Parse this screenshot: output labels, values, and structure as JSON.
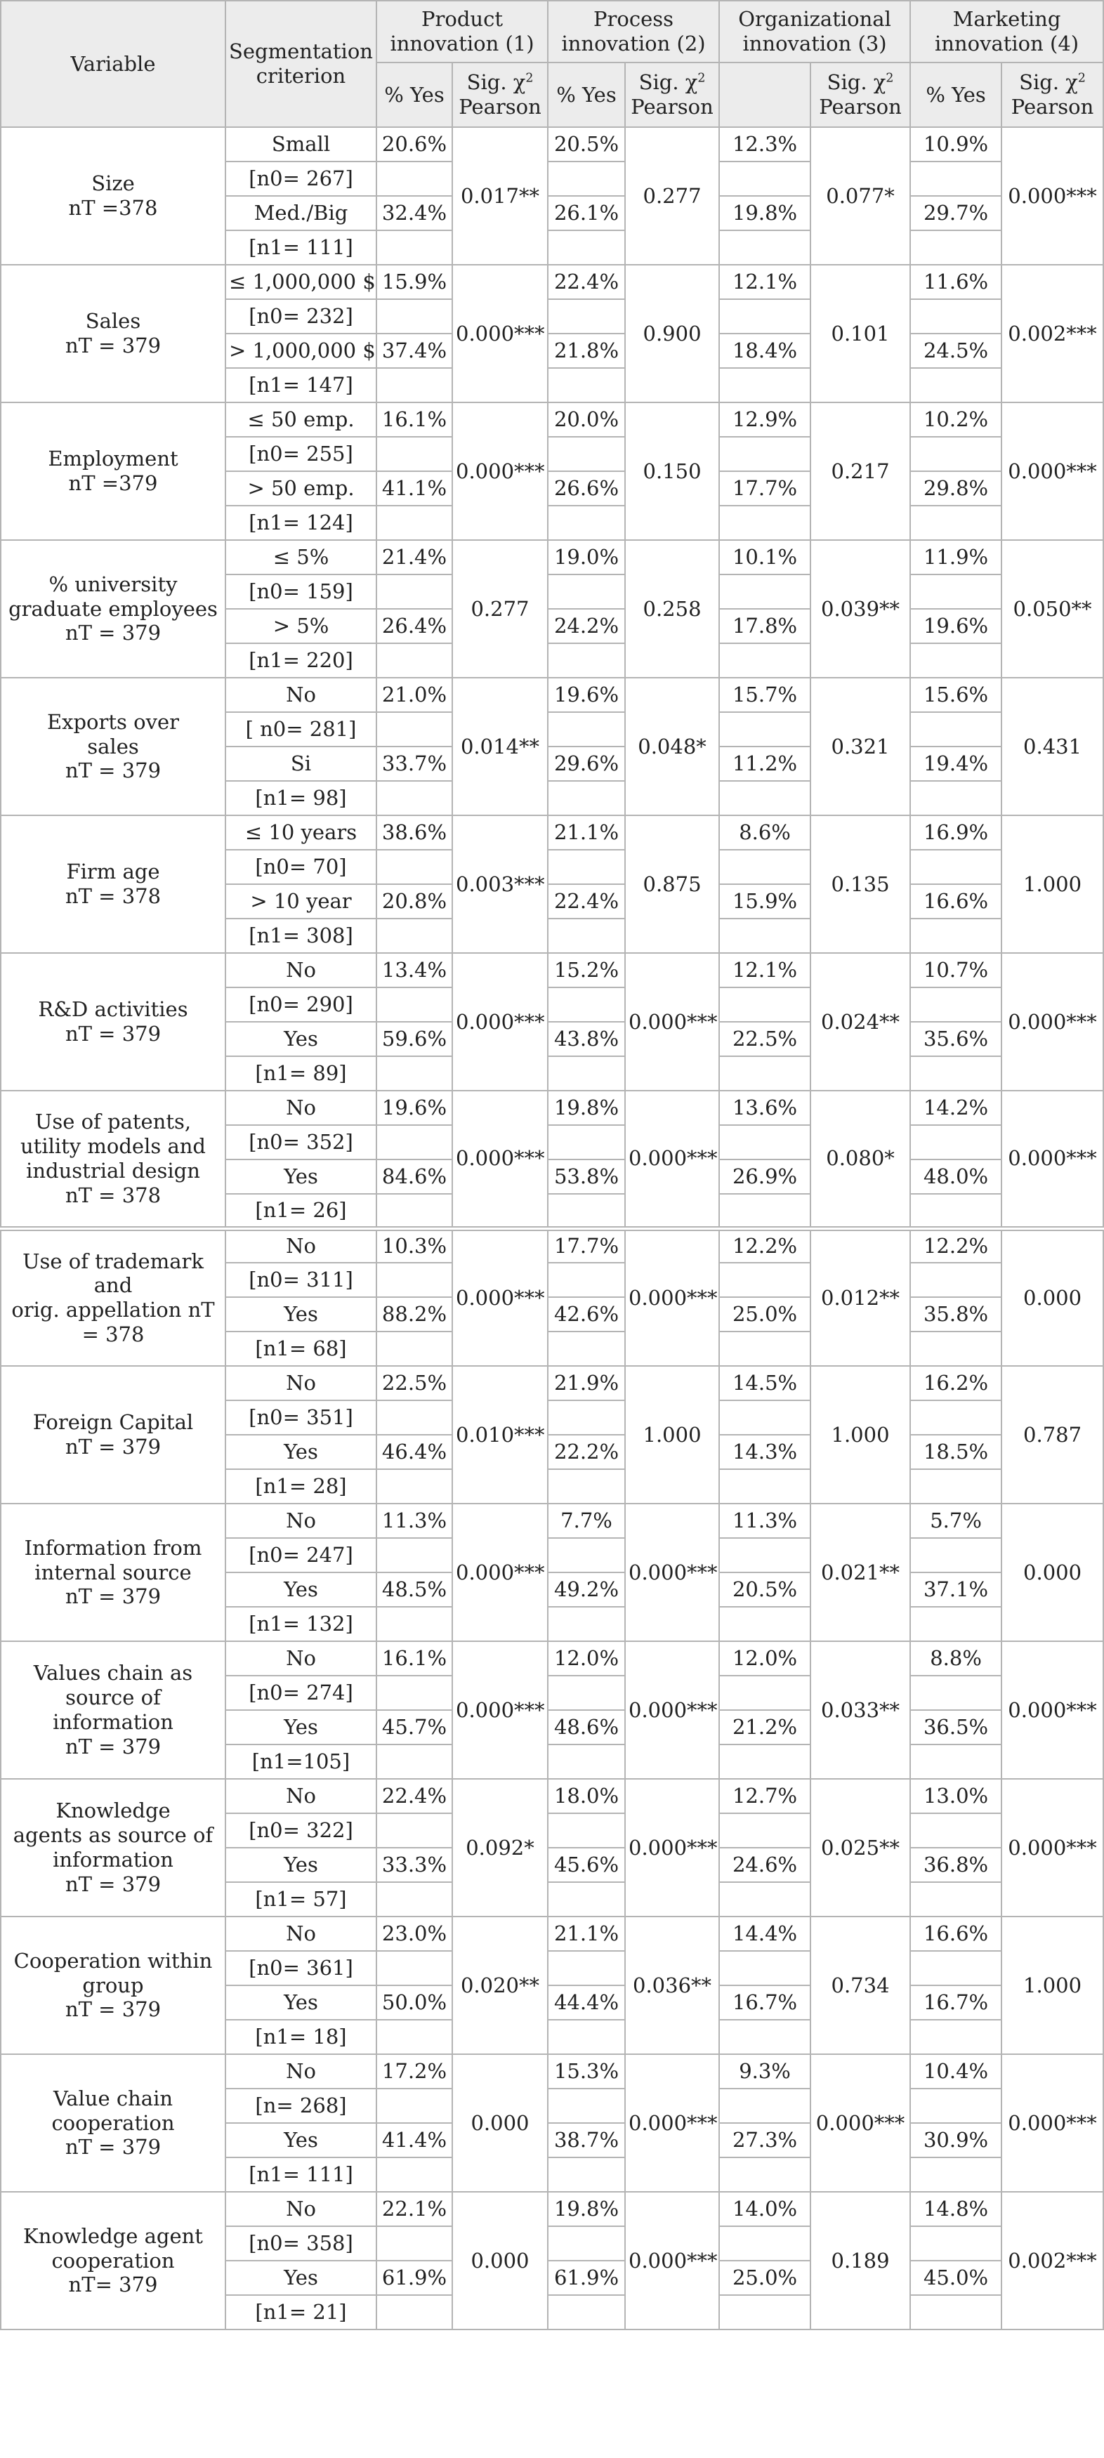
{
  "header": {
    "variable": "Variable",
    "criterion": "Segmentation criterion",
    "groups": [
      "Product innovation (1)",
      "Process innovation (2)",
      "Organizational innovation (3)",
      "Marketing innovation (4)"
    ],
    "pct_yes": "% Yes",
    "sig_label": "Sig. χ",
    "sig_sup": "2",
    "pearson": "Pearson"
  },
  "rows": [
    {
      "var": [
        "Size",
        "nT =378"
      ],
      "c0": "Small",
      "n0": "[n0= 267]",
      "c1": "Med./Big",
      "n1": "[n1= 111]",
      "p0": [
        "20.6%",
        "20.5%",
        "12.3%",
        "10.9%"
      ],
      "p1": [
        "32.4%",
        "26.1%",
        "19.8%",
        "29.7%"
      ],
      "sig": [
        "0.017**",
        "0.277",
        "0.077*",
        "0.000***"
      ]
    },
    {
      "var": [
        "Sales",
        "nT = 379"
      ],
      "c0": "≤ 1,000,000 $",
      "n0": "[n0= 232]",
      "c1": "> 1,000,000 $",
      "n1": "[n1= 147]",
      "p0": [
        "15.9%",
        "22.4%",
        "12.1%",
        "11.6%"
      ],
      "p1": [
        "37.4%",
        "21.8%",
        "18.4%",
        "24.5%"
      ],
      "sig": [
        "0.000***",
        "0.900",
        "0.101",
        "0.002***"
      ]
    },
    {
      "var": [
        "Employment",
        "nT =379"
      ],
      "c0": "≤ 50 emp.",
      "n0": "[n0= 255]",
      "c1": "> 50 emp.",
      "n1": "[n1= 124]",
      "p0": [
        "16.1%",
        "20.0%",
        "12.9%",
        "10.2%"
      ],
      "p1": [
        "41.1%",
        "26.6%",
        "17.7%",
        "29.8%"
      ],
      "sig": [
        "0.000***",
        "0.150",
        "0.217",
        "0.000***"
      ]
    },
    {
      "var": [
        "% university",
        "graduate employees",
        "nT = 379"
      ],
      "c0": "≤ 5%",
      "n0": "[n0= 159]",
      "c1": "> 5%",
      "n1": "[n1= 220]",
      "p0": [
        "21.4%",
        "19.0%",
        "10.1%",
        "11.9%"
      ],
      "p1": [
        "26.4%",
        "24.2%",
        "17.8%",
        "19.6%"
      ],
      "sig": [
        "0.277",
        "0.258",
        "0.039**",
        "0.050**"
      ]
    },
    {
      "var": [
        "Exports over",
        "sales",
        "nT = 379"
      ],
      "c0": "No",
      "n0": "[ n0= 281]",
      "c1": "Si",
      "n1": "[n1= 98]",
      "p0": [
        "21.0%",
        "19.6%",
        "15.7%",
        "15.6%"
      ],
      "p1": [
        "33.7%",
        "29.6%",
        "11.2%",
        "19.4%"
      ],
      "sig": [
        "0.014**",
        "0.048*",
        "0.321",
        "0.431"
      ]
    },
    {
      "var": [
        "Firm age",
        "nT = 378"
      ],
      "c0": "≤ 10 years",
      "n0": "[n0= 70]",
      "c1": "> 10 year",
      "n1": "[n1= 308]",
      "p0": [
        "38.6%",
        "21.1%",
        "8.6%",
        "16.9%"
      ],
      "p1": [
        "20.8%",
        "22.4%",
        "15.9%",
        "16.6%"
      ],
      "sig": [
        "0.003***",
        "0.875",
        "0.135",
        "1.000"
      ]
    },
    {
      "var": [
        "R&D activities",
        "nT = 379"
      ],
      "c0": "No",
      "n0": "[n0= 290]",
      "c1": "Yes",
      "n1": "[n1= 89]",
      "p0": [
        "13.4%",
        "15.2%",
        "12.1%",
        "10.7%"
      ],
      "p1": [
        "59.6%",
        "43.8%",
        "22.5%",
        "35.6%"
      ],
      "sig": [
        "0.000***",
        "0.000***",
        "0.024**",
        "0.000***"
      ]
    },
    {
      "var": [
        "Use of patents,",
        "utility models and",
        "industrial design",
        "nT = 378"
      ],
      "c0": "No",
      "n0": "[n0= 352]",
      "c1": "Yes",
      "n1": "[n1= 26]",
      "p0": [
        "19.6%",
        "19.8%",
        "13.6%",
        "14.2%"
      ],
      "p1": [
        "84.6%",
        "53.8%",
        "26.9%",
        "48.0%"
      ],
      "sig": [
        "0.000***",
        "0.000***",
        "0.080*",
        "0.000***"
      ]
    },
    {
      "var": [
        "Use of trademark and",
        "orig. appellation nT",
        "= 378"
      ],
      "c0": "No",
      "n0": "[n0= 311]",
      "c1": "Yes",
      "n1": "[n1= 68]",
      "p0": [
        "10.3%",
        "17.7%",
        "12.2%",
        "12.2%"
      ],
      "p1": [
        "88.2%",
        "42.6%",
        "25.0%",
        "35.8%"
      ],
      "sig": [
        "0.000***",
        "0.000***",
        "0.012**",
        "0.000"
      ]
    },
    {
      "var": [
        "Foreign Capital",
        "nT = 379"
      ],
      "c0": "No",
      "n0": "[n0= 351]",
      "c1": "Yes",
      "n1": "[n1= 28]",
      "p0": [
        "22.5%",
        "21.9%",
        "14.5%",
        "16.2%"
      ],
      "p1": [
        "46.4%",
        "22.2%",
        "14.3%",
        "18.5%"
      ],
      "sig": [
        "0.010***",
        "1.000",
        "1.000",
        "0.787"
      ]
    },
    {
      "var": [
        "Information from",
        "internal source",
        "nT = 379"
      ],
      "c0": "No",
      "n0": "[n0= 247]",
      "c1": "Yes",
      "n1": "[n1= 132]",
      "p0": [
        "11.3%",
        "7.7%",
        "11.3%",
        "5.7%"
      ],
      "p1": [
        "48.5%",
        "49.2%",
        "20.5%",
        "37.1%"
      ],
      "sig": [
        "0.000***",
        "0.000***",
        "0.021**",
        "0.000"
      ]
    },
    {
      "var": [
        "Values chain as",
        "source of information",
        "nT = 379"
      ],
      "c0": "No",
      "n0": "[n0= 274]",
      "c1": "Yes",
      "n1": "[n1=105]",
      "p0": [
        "16.1%",
        "12.0%",
        "12.0%",
        "8.8%"
      ],
      "p1": [
        "45.7%",
        "48.6%",
        "21.2%",
        "36.5%"
      ],
      "sig": [
        "0.000***",
        "0.000***",
        "0.033**",
        "0.000***"
      ]
    },
    {
      "var": [
        "Knowledge",
        "agents as source of",
        "information",
        "nT = 379"
      ],
      "c0": "No",
      "n0": "[n0= 322]",
      "c1": "Yes",
      "n1": "[n1= 57]",
      "p0": [
        "22.4%",
        "18.0%",
        "12.7%",
        "13.0%"
      ],
      "p1": [
        "33.3%",
        "45.6%",
        "24.6%",
        "36.8%"
      ],
      "sig": [
        "0.092*",
        "0.000***",
        "0.025**",
        "0.000***"
      ]
    },
    {
      "var": [
        "Cooperation within",
        "group",
        "nT = 379"
      ],
      "c0": "No",
      "n0": "[n0= 361]",
      "c1": "Yes",
      "n1": "[n1= 18]",
      "p0": [
        "23.0%",
        "21.1%",
        "14.4%",
        "16.6%"
      ],
      "p1": [
        "50.0%",
        "44.4%",
        "16.7%",
        "16.7%"
      ],
      "sig": [
        "0.020**",
        "0.036**",
        "0.734",
        "1.000"
      ]
    },
    {
      "var": [
        "Value chain",
        "cooperation",
        "nT = 379"
      ],
      "c0": "No",
      "n0": "[n= 268]",
      "c1": "Yes",
      "n1": "[n1= 111]",
      "p0": [
        "17.2%",
        "15.3%",
        "9.3%",
        "10.4%"
      ],
      "p1": [
        "41.4%",
        "38.7%",
        "27.3%",
        "30.9%"
      ],
      "sig": [
        "0.000",
        "0.000***",
        "0.000***",
        "0.000***"
      ]
    },
    {
      "var": [
        "Knowledge agent",
        "cooperation",
        "nT= 379"
      ],
      "c0": "No",
      "n0": "[n0= 358]",
      "c1": "Yes",
      "n1": "[n1= 21]",
      "p0": [
        "22.1%",
        "19.8%",
        "14.0%",
        "14.8%"
      ],
      "p1": [
        "61.9%",
        "61.9%",
        "25.0%",
        "45.0%"
      ],
      "sig": [
        "0.000",
        "0.000***",
        "0.189",
        "0.002***"
      ]
    }
  ]
}
